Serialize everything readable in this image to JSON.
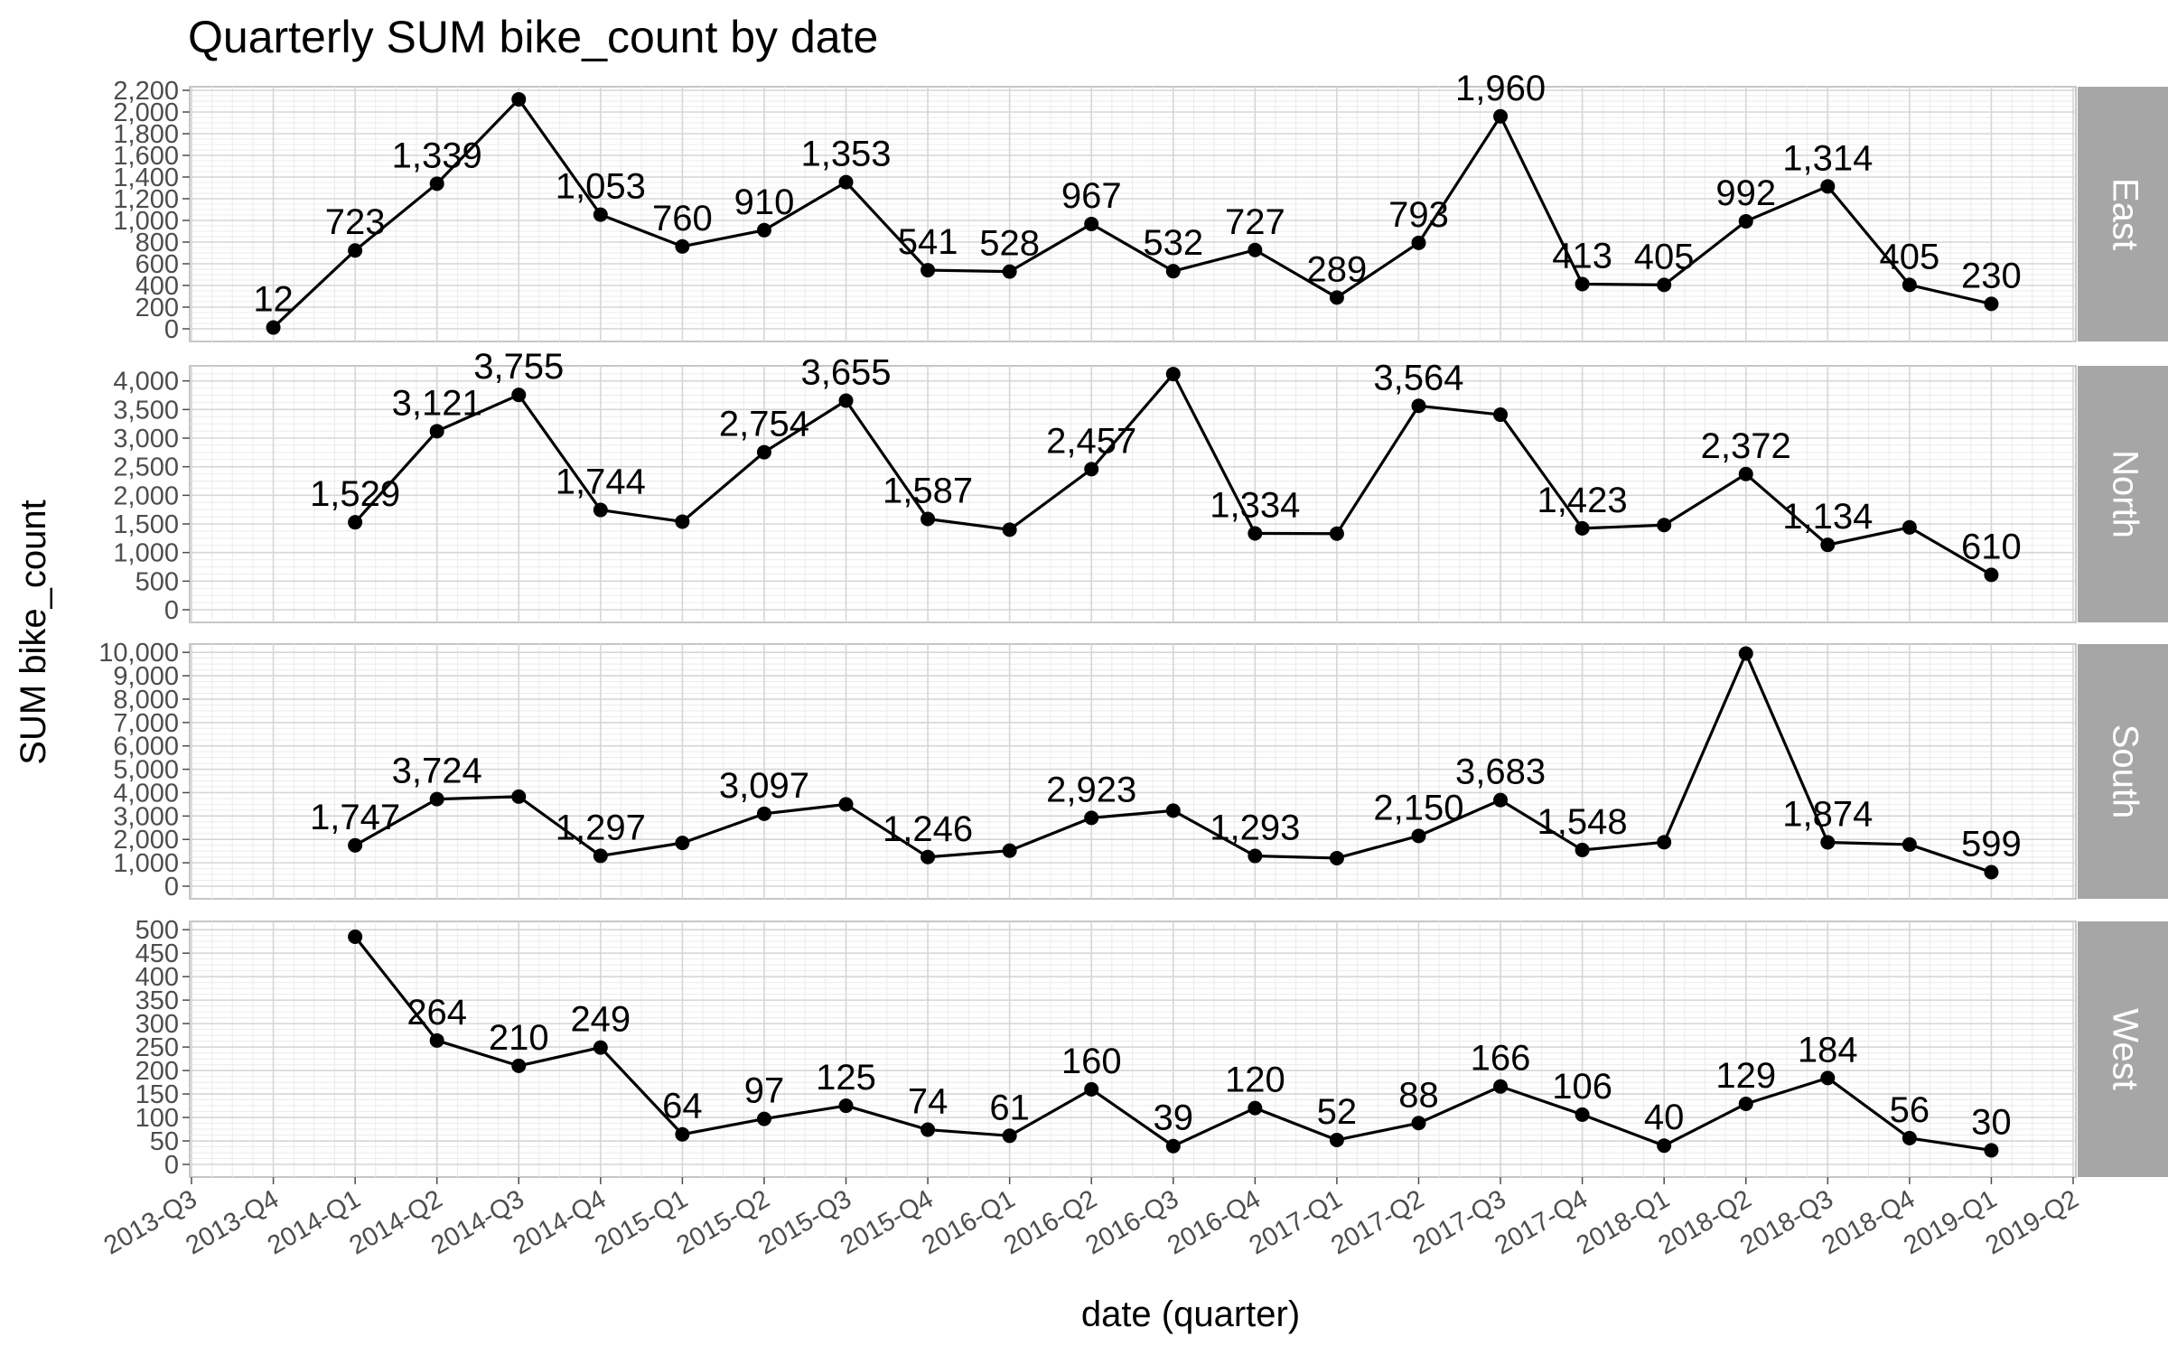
{
  "chart_data": {
    "type": "line",
    "title": "Quarterly SUM bike_count by date",
    "xlabel": "date (quarter)",
    "ylabel": "SUM bike_count",
    "x_ticks": [
      "2013-Q3",
      "2013-Q4",
      "2014-Q1",
      "2014-Q2",
      "2014-Q3",
      "2014-Q4",
      "2015-Q1",
      "2015-Q2",
      "2015-Q3",
      "2015-Q4",
      "2016-Q1",
      "2016-Q2",
      "2016-Q3",
      "2016-Q4",
      "2017-Q1",
      "2017-Q2",
      "2017-Q3",
      "2017-Q4",
      "2018-Q1",
      "2018-Q2",
      "2018-Q3",
      "2018-Q4",
      "2019-Q1",
      "2019-Q2"
    ],
    "grid": true,
    "legend": "none",
    "facets": [
      {
        "name": "East",
        "ylim": [
          0,
          2200
        ],
        "y_ticks": [
          0,
          200,
          400,
          600,
          800,
          1000,
          1200,
          1400,
          1600,
          1800,
          2000,
          2200
        ],
        "y_tick_labels": [
          "0",
          "200",
          "400",
          "600",
          "800",
          "1,000",
          "1,200",
          "1,400",
          "1,600",
          "1,800",
          "2,000",
          "2,200"
        ],
        "points": [
          {
            "x": "2013-Q4",
            "y": 12,
            "label": "12"
          },
          {
            "x": "2014-Q1",
            "y": 723,
            "label": "723"
          },
          {
            "x": "2014-Q2",
            "y": 1339,
            "label": "1,339"
          },
          {
            "x": "2014-Q3",
            "y": 2117,
            "label": ""
          },
          {
            "x": "2014-Q4",
            "y": 1053,
            "label": "1,053"
          },
          {
            "x": "2015-Q1",
            "y": 760,
            "label": "760"
          },
          {
            "x": "2015-Q2",
            "y": 910,
            "label": "910"
          },
          {
            "x": "2015-Q3",
            "y": 1353,
            "label": "1,353"
          },
          {
            "x": "2015-Q4",
            "y": 541,
            "label": "541"
          },
          {
            "x": "2016-Q1",
            "y": 528,
            "label": "528"
          },
          {
            "x": "2016-Q2",
            "y": 967,
            "label": "967"
          },
          {
            "x": "2016-Q3",
            "y": 532,
            "label": "532"
          },
          {
            "x": "2016-Q4",
            "y": 727,
            "label": "727"
          },
          {
            "x": "2017-Q1",
            "y": 289,
            "label": "289"
          },
          {
            "x": "2017-Q2",
            "y": 793,
            "label": "793"
          },
          {
            "x": "2017-Q3",
            "y": 1960,
            "label": "1,960"
          },
          {
            "x": "2017-Q4",
            "y": 413,
            "label": "413"
          },
          {
            "x": "2018-Q1",
            "y": 405,
            "label": "405"
          },
          {
            "x": "2018-Q2",
            "y": 992,
            "label": "992"
          },
          {
            "x": "2018-Q3",
            "y": 1314,
            "label": "1,314"
          },
          {
            "x": "2018-Q4",
            "y": 405,
            "label": "405"
          },
          {
            "x": "2019-Q1",
            "y": 230,
            "label": "230"
          }
        ]
      },
      {
        "name": "North",
        "ylim": [
          0,
          4200
        ],
        "y_ticks": [
          0,
          500,
          1000,
          1500,
          2000,
          2500,
          3000,
          3500,
          4000
        ],
        "y_tick_labels": [
          "0",
          "500",
          "1,000",
          "1,500",
          "2,000",
          "2,500",
          "3,000",
          "3,500",
          "4,000"
        ],
        "points": [
          {
            "x": "2014-Q1",
            "y": 1529,
            "label": "1,529"
          },
          {
            "x": "2014-Q2",
            "y": 3121,
            "label": "3,121"
          },
          {
            "x": "2014-Q3",
            "y": 3755,
            "label": "3,755"
          },
          {
            "x": "2014-Q4",
            "y": 1744,
            "label": "1,744"
          },
          {
            "x": "2015-Q1",
            "y": 1540,
            "label": ""
          },
          {
            "x": "2015-Q2",
            "y": 2754,
            "label": "2,754"
          },
          {
            "x": "2015-Q3",
            "y": 3655,
            "label": "3,655"
          },
          {
            "x": "2015-Q4",
            "y": 1587,
            "label": "1,587"
          },
          {
            "x": "2016-Q1",
            "y": 1400,
            "label": ""
          },
          {
            "x": "2016-Q2",
            "y": 2457,
            "label": "2,457"
          },
          {
            "x": "2016-Q3",
            "y": 4120,
            "label": ""
          },
          {
            "x": "2016-Q4",
            "y": 1334,
            "label": "1,334"
          },
          {
            "x": "2017-Q1",
            "y": 1330,
            "label": ""
          },
          {
            "x": "2017-Q2",
            "y": 3564,
            "label": "3,564"
          },
          {
            "x": "2017-Q3",
            "y": 3410,
            "label": ""
          },
          {
            "x": "2017-Q4",
            "y": 1423,
            "label": "1,423"
          },
          {
            "x": "2018-Q1",
            "y": 1480,
            "label": ""
          },
          {
            "x": "2018-Q2",
            "y": 2372,
            "label": "2,372"
          },
          {
            "x": "2018-Q3",
            "y": 1134,
            "label": "1,134"
          },
          {
            "x": "2018-Q4",
            "y": 1440,
            "label": ""
          },
          {
            "x": "2019-Q1",
            "y": 610,
            "label": "610"
          }
        ]
      },
      {
        "name": "South",
        "ylim": [
          0,
          10200
        ],
        "y_ticks": [
          0,
          1000,
          2000,
          3000,
          4000,
          5000,
          6000,
          7000,
          8000,
          9000,
          10000
        ],
        "y_tick_labels": [
          "0",
          "1,000",
          "2,000",
          "3,000",
          "4,000",
          "5,000",
          "6,000",
          "7,000",
          "8,000",
          "9,000",
          "10,000"
        ],
        "points": [
          {
            "x": "2014-Q1",
            "y": 1747,
            "label": "1,747"
          },
          {
            "x": "2014-Q2",
            "y": 3724,
            "label": "3,724"
          },
          {
            "x": "2014-Q3",
            "y": 3830,
            "label": ""
          },
          {
            "x": "2014-Q4",
            "y": 1297,
            "label": "1,297"
          },
          {
            "x": "2015-Q1",
            "y": 1850,
            "label": ""
          },
          {
            "x": "2015-Q2",
            "y": 3097,
            "label": "3,097"
          },
          {
            "x": "2015-Q3",
            "y": 3500,
            "label": ""
          },
          {
            "x": "2015-Q4",
            "y": 1246,
            "label": "1,246"
          },
          {
            "x": "2016-Q1",
            "y": 1520,
            "label": ""
          },
          {
            "x": "2016-Q2",
            "y": 2923,
            "label": "2,923"
          },
          {
            "x": "2016-Q3",
            "y": 3230,
            "label": ""
          },
          {
            "x": "2016-Q4",
            "y": 1293,
            "label": "1,293"
          },
          {
            "x": "2017-Q1",
            "y": 1200,
            "label": ""
          },
          {
            "x": "2017-Q2",
            "y": 2150,
            "label": "2,150"
          },
          {
            "x": "2017-Q3",
            "y": 3683,
            "label": "3,683"
          },
          {
            "x": "2017-Q4",
            "y": 1548,
            "label": "1,548"
          },
          {
            "x": "2018-Q1",
            "y": 1880,
            "label": ""
          },
          {
            "x": "2018-Q2",
            "y": 9950,
            "label": ""
          },
          {
            "x": "2018-Q3",
            "y": 1874,
            "label": "1,874"
          },
          {
            "x": "2018-Q4",
            "y": 1780,
            "label": ""
          },
          {
            "x": "2019-Q1",
            "y": 599,
            "label": "599"
          }
        ]
      },
      {
        "name": "West",
        "ylim": [
          0,
          510
        ],
        "y_ticks": [
          0,
          50,
          100,
          150,
          200,
          250,
          300,
          350,
          400,
          450,
          500
        ],
        "y_tick_labels": [
          "0",
          "50",
          "100",
          "150",
          "200",
          "250",
          "300",
          "350",
          "400",
          "450",
          "500"
        ],
        "points": [
          {
            "x": "2014-Q1",
            "y": 485,
            "label": ""
          },
          {
            "x": "2014-Q2",
            "y": 264,
            "label": "264"
          },
          {
            "x": "2014-Q3",
            "y": 210,
            "label": "210"
          },
          {
            "x": "2014-Q4",
            "y": 249,
            "label": "249"
          },
          {
            "x": "2015-Q1",
            "y": 64,
            "label": "64"
          },
          {
            "x": "2015-Q2",
            "y": 97,
            "label": "97"
          },
          {
            "x": "2015-Q3",
            "y": 125,
            "label": "125"
          },
          {
            "x": "2015-Q4",
            "y": 74,
            "label": "74"
          },
          {
            "x": "2016-Q1",
            "y": 61,
            "label": "61"
          },
          {
            "x": "2016-Q2",
            "y": 160,
            "label": "160"
          },
          {
            "x": "2016-Q3",
            "y": 39,
            "label": "39"
          },
          {
            "x": "2016-Q4",
            "y": 120,
            "label": "120"
          },
          {
            "x": "2017-Q1",
            "y": 52,
            "label": "52"
          },
          {
            "x": "2017-Q2",
            "y": 88,
            "label": "88"
          },
          {
            "x": "2017-Q3",
            "y": 166,
            "label": "166"
          },
          {
            "x": "2017-Q4",
            "y": 106,
            "label": "106"
          },
          {
            "x": "2018-Q1",
            "y": 40,
            "label": "40"
          },
          {
            "x": "2018-Q2",
            "y": 129,
            "label": "129"
          },
          {
            "x": "2018-Q3",
            "y": 184,
            "label": "184"
          },
          {
            "x": "2018-Q4",
            "y": 56,
            "label": "56"
          },
          {
            "x": "2019-Q1",
            "y": 30,
            "label": "30"
          }
        ]
      }
    ]
  }
}
